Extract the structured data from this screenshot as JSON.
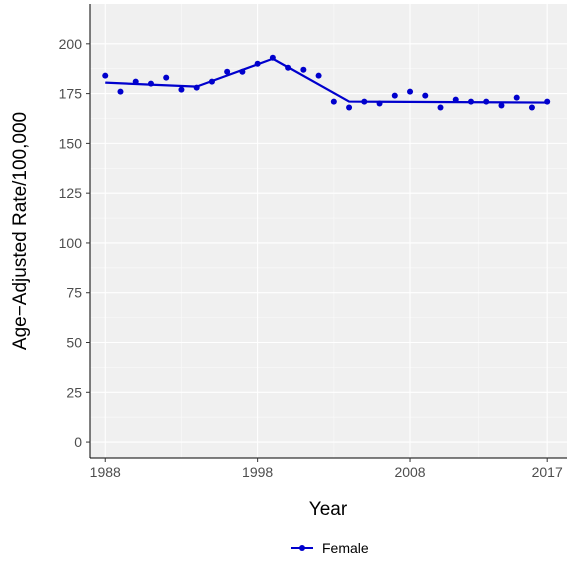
{
  "chart_data": {
    "type": "scatter",
    "xlabel": "Year",
    "ylabel": "Age−Adjusted Rate/100,000",
    "xlim": [
      1987,
      2018.3
    ],
    "ylim": [
      -8,
      220
    ],
    "x_ticks": [
      1988,
      1998,
      2008,
      2017
    ],
    "y_ticks": [
      0,
      25,
      50,
      75,
      100,
      125,
      150,
      175,
      200
    ],
    "grid": true,
    "legend_position": "bottom",
    "series": [
      {
        "name": "Female",
        "color": "#0000cd",
        "points": [
          {
            "x": 1988,
            "y": 184
          },
          {
            "x": 1989,
            "y": 176
          },
          {
            "x": 1990,
            "y": 181
          },
          {
            "x": 1991,
            "y": 180
          },
          {
            "x": 1992,
            "y": 183
          },
          {
            "x": 1993,
            "y": 177
          },
          {
            "x": 1994,
            "y": 178
          },
          {
            "x": 1995,
            "y": 181
          },
          {
            "x": 1996,
            "y": 186
          },
          {
            "x": 1997,
            "y": 186
          },
          {
            "x": 1998,
            "y": 190
          },
          {
            "x": 1999,
            "y": 193
          },
          {
            "x": 2000,
            "y": 188
          },
          {
            "x": 2001,
            "y": 187
          },
          {
            "x": 2002,
            "y": 184
          },
          {
            "x": 2003,
            "y": 171
          },
          {
            "x": 2004,
            "y": 168
          },
          {
            "x": 2005,
            "y": 171
          },
          {
            "x": 2006,
            "y": 170
          },
          {
            "x": 2007,
            "y": 174
          },
          {
            "x": 2008,
            "y": 176
          },
          {
            "x": 2009,
            "y": 174
          },
          {
            "x": 2010,
            "y": 168
          },
          {
            "x": 2011,
            "y": 172
          },
          {
            "x": 2012,
            "y": 171
          },
          {
            "x": 2013,
            "y": 171
          },
          {
            "x": 2014,
            "y": 169
          },
          {
            "x": 2015,
            "y": 173
          },
          {
            "x": 2016,
            "y": 168
          },
          {
            "x": 2017,
            "y": 171
          }
        ],
        "trend": [
          {
            "x": 1988,
            "y": 180.5
          },
          {
            "x": 1994,
            "y": 178.5
          },
          {
            "x": 1999,
            "y": 192.5
          },
          {
            "x": 2004,
            "y": 171
          },
          {
            "x": 2017,
            "y": 170.5
          }
        ]
      }
    ]
  }
}
